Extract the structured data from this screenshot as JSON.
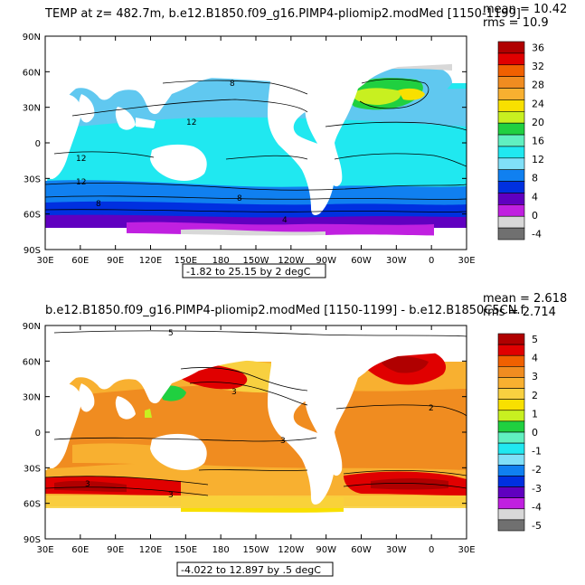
{
  "panel1": {
    "title": "TEMP at z= 482.7m, b.e12.B1850.f09_g16.PIMP4-pliomip2.modMed [1150-1199]",
    "mean_label": "mean = 10.42",
    "rms_label": "rms = 10.9",
    "range_label": "-1.82 to 25.15 by 2 degC",
    "contour_labels": [
      "8",
      "12",
      "12",
      "12",
      "8",
      "8",
      "4"
    ],
    "colorbar": {
      "labels": [
        "36",
        "32",
        "28",
        "24",
        "20",
        "16",
        "12",
        "8",
        "4",
        "0",
        "-4"
      ],
      "colors": [
        "#b00000",
        "#e00000",
        "#f06000",
        "#f08c20",
        "#f8b030",
        "#f8e000",
        "#c8f020",
        "#20d040",
        "#60f0c0",
        "#20e8f0",
        "#80e0f8",
        "#1080f0",
        "#0030e0",
        "#6000c0",
        "#c020e0",
        "#d8d8d8",
        "#707070"
      ]
    }
  },
  "panel2": {
    "title": "b.e12.B1850.f09_g16.PIMP4-pliomip2.modMed [1150-1199] - b.e12.B1850C5CN.f",
    "mean_label": "mean = 2.618",
    "rms_label": "rms = 2.714",
    "range_label": "-4.022 to 12.897 by .5 degC",
    "contour_labels": [
      "5",
      "3",
      "3",
      "3",
      "3",
      "2"
    ],
    "colorbar": {
      "labels": [
        "5",
        "4",
        "3",
        "2",
        "1",
        "0",
        "-1",
        "-2",
        "-3",
        "-4",
        "-5"
      ],
      "colors": [
        "#b00000",
        "#e00000",
        "#f06000",
        "#f08c20",
        "#f8b030",
        "#f8d040",
        "#f8e000",
        "#c8f020",
        "#20d040",
        "#60f0c0",
        "#20e8f0",
        "#80e0f8",
        "#1080f0",
        "#0030e0",
        "#6000c0",
        "#c020e0",
        "#d8d8d8",
        "#707070"
      ]
    }
  },
  "axes": {
    "lat_ticks": [
      "90N",
      "60N",
      "30N",
      "0",
      "30S",
      "60S",
      "90S"
    ],
    "lon_ticks": [
      "30E",
      "60E",
      "90E",
      "120E",
      "150E",
      "180",
      "150W",
      "120W",
      "90W",
      "60W",
      "30W",
      "0",
      "30E"
    ]
  }
}
